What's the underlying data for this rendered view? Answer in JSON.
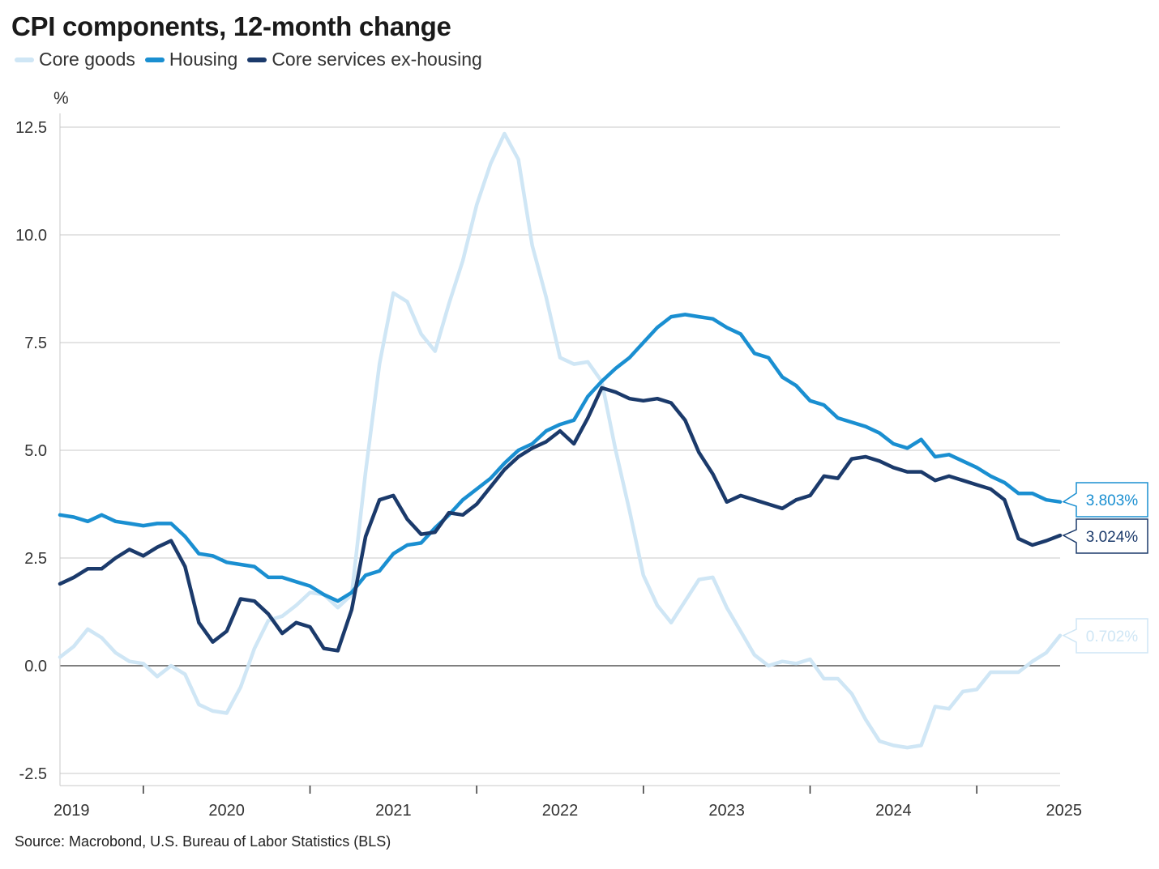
{
  "chart_data": {
    "type": "line",
    "title": "CPI components, 12-month change",
    "ylabel": "%",
    "source": "Source: Macrobond, U.S. Bureau of Labor Statistics (BLS)",
    "ylim": [
      -2.5,
      12.5
    ],
    "yticks": [
      -2.5,
      0,
      2.5,
      5,
      7.5,
      10,
      12.5
    ],
    "ytick_labels": [
      "-2.5",
      "0.0",
      "2.5",
      "5.0",
      "7.5",
      "10.0",
      "12.5"
    ],
    "xtick_labels": [
      "2019",
      "2020",
      "2021",
      "2022",
      "2023",
      "2024",
      "2025"
    ],
    "x_start": "2019-01",
    "grid": true,
    "legend_position": "top-left",
    "series": [
      {
        "name": "Core goods",
        "color": "#cfe6f5",
        "end_label": "0.702%",
        "values": [
          0.2,
          0.45,
          0.85,
          0.65,
          0.3,
          0.1,
          0.05,
          -0.25,
          0.0,
          -0.2,
          -0.9,
          -1.05,
          -1.1,
          -0.5,
          0.4,
          1.05,
          1.15,
          1.4,
          1.7,
          1.65,
          1.35,
          1.65,
          4.5,
          7.0,
          8.65,
          8.45,
          7.7,
          7.3,
          8.4,
          9.4,
          10.7,
          11.65,
          12.35,
          11.75,
          9.75,
          8.55,
          7.15,
          7.0,
          7.05,
          6.6,
          5.0,
          3.6,
          2.1,
          1.4,
          1.0,
          1.5,
          2.0,
          2.05,
          1.35,
          0.8,
          0.25,
          0.0,
          0.1,
          0.05,
          0.15,
          -0.3,
          -0.3,
          -0.65,
          -1.25,
          -1.75,
          -1.85,
          -1.9,
          -1.85,
          -0.95,
          -1.0,
          -0.6,
          -0.55,
          -0.15,
          -0.15,
          -0.15,
          0.1,
          0.3,
          0.702
        ]
      },
      {
        "name": "Housing",
        "color": "#1a8fd1",
        "end_label": "3.803%",
        "values": [
          3.5,
          3.45,
          3.35,
          3.5,
          3.35,
          3.3,
          3.25,
          3.3,
          3.3,
          3.0,
          2.6,
          2.55,
          2.4,
          2.35,
          2.3,
          2.05,
          2.05,
          1.95,
          1.85,
          1.65,
          1.5,
          1.7,
          2.1,
          2.2,
          2.6,
          2.8,
          2.85,
          3.2,
          3.5,
          3.85,
          4.1,
          4.35,
          4.7,
          5.0,
          5.15,
          5.45,
          5.6,
          5.7,
          6.25,
          6.6,
          6.9,
          7.15,
          7.5,
          7.85,
          8.1,
          8.15,
          8.1,
          8.05,
          7.85,
          7.7,
          7.25,
          7.15,
          6.7,
          6.5,
          6.15,
          6.05,
          5.75,
          5.65,
          5.55,
          5.4,
          5.15,
          5.05,
          5.25,
          4.85,
          4.9,
          4.75,
          4.6,
          4.4,
          4.25,
          4.0,
          4.0,
          3.85,
          3.803
        ]
      },
      {
        "name": "Core services ex-housing",
        "color": "#1b3a6b",
        "end_label": "3.024%",
        "values": [
          1.9,
          2.05,
          2.25,
          2.25,
          2.5,
          2.7,
          2.55,
          2.75,
          2.9,
          2.3,
          1.0,
          0.55,
          0.8,
          1.55,
          1.5,
          1.2,
          0.75,
          1.0,
          0.9,
          0.4,
          0.35,
          1.3,
          3.0,
          3.85,
          3.95,
          3.4,
          3.05,
          3.1,
          3.55,
          3.5,
          3.75,
          4.15,
          4.55,
          4.85,
          5.05,
          5.2,
          5.45,
          5.15,
          5.75,
          6.45,
          6.35,
          6.2,
          6.15,
          6.2,
          6.1,
          5.7,
          4.95,
          4.45,
          3.8,
          3.95,
          3.85,
          3.75,
          3.65,
          3.85,
          3.95,
          4.4,
          4.35,
          4.8,
          4.85,
          4.75,
          4.6,
          4.5,
          4.5,
          4.3,
          4.4,
          4.3,
          4.2,
          4.1,
          3.85,
          2.95,
          2.8,
          2.9,
          3.024
        ]
      }
    ]
  }
}
